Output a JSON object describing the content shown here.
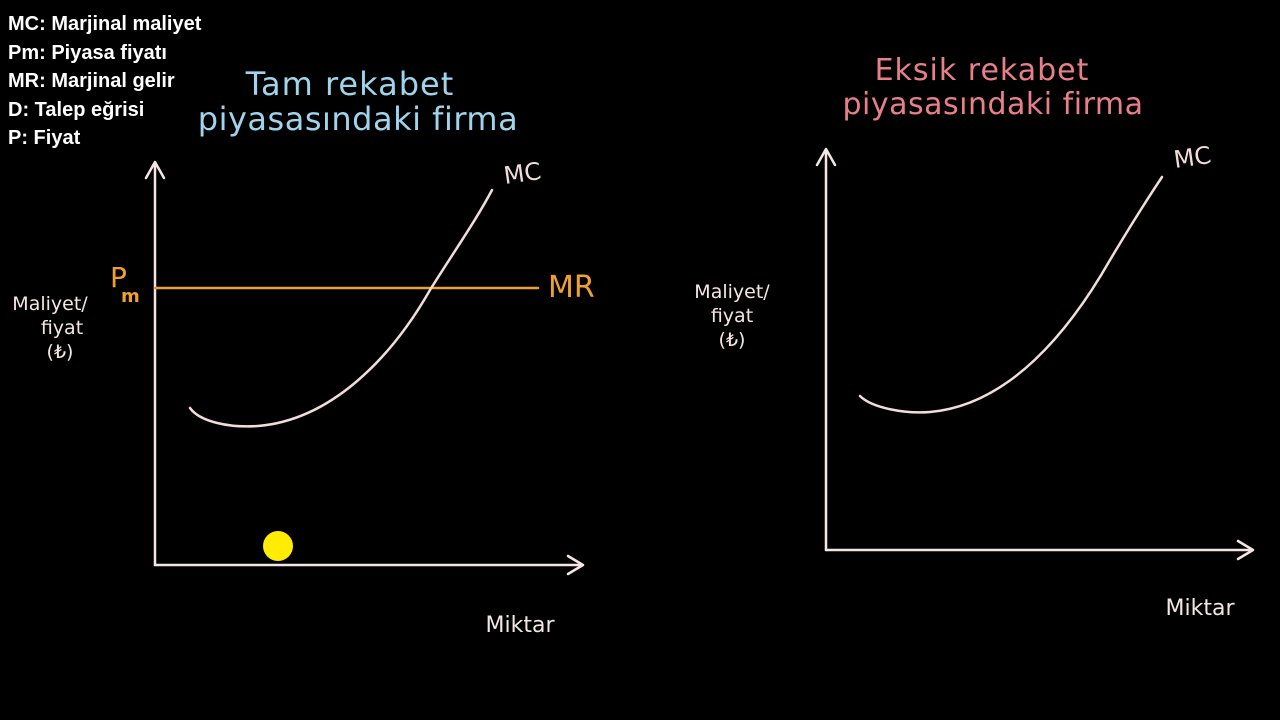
{
  "legend": [
    "MC: Marjinal maliyet",
    "Pm: Piyasa fiyatı",
    "MR: Marjinal gelir",
    "D: Talep eğrisi",
    "P: Fiyat"
  ],
  "left_panel": {
    "title_line1": "Tam rekabet",
    "title_line2": "piyasasındaki firma",
    "ylabel_line1": "Maliyet/",
    "ylabel_line2": "fiyat",
    "ylabel_line3": "(₺)",
    "xlabel": "Miktar",
    "mc_label": "MC",
    "mr_label": "MR",
    "pm_label_main": "P",
    "pm_label_sub": "m"
  },
  "right_panel": {
    "title_line1": "Eksik rekabet",
    "title_line2": "piyasasındaki firma",
    "ylabel_line1": "Maliyet/",
    "ylabel_line2": "fiyat",
    "ylabel_line3": "(₺)",
    "xlabel": "Miktar",
    "mc_label": "MC"
  },
  "colors": {
    "background": "#000000",
    "axis": "#f5e6e6",
    "curve": "#f2dcdc",
    "mr_line": "#f0a030",
    "title_left": "#9fd4ec",
    "title_right": "#e8808a",
    "cursor": "#ffec00"
  }
}
